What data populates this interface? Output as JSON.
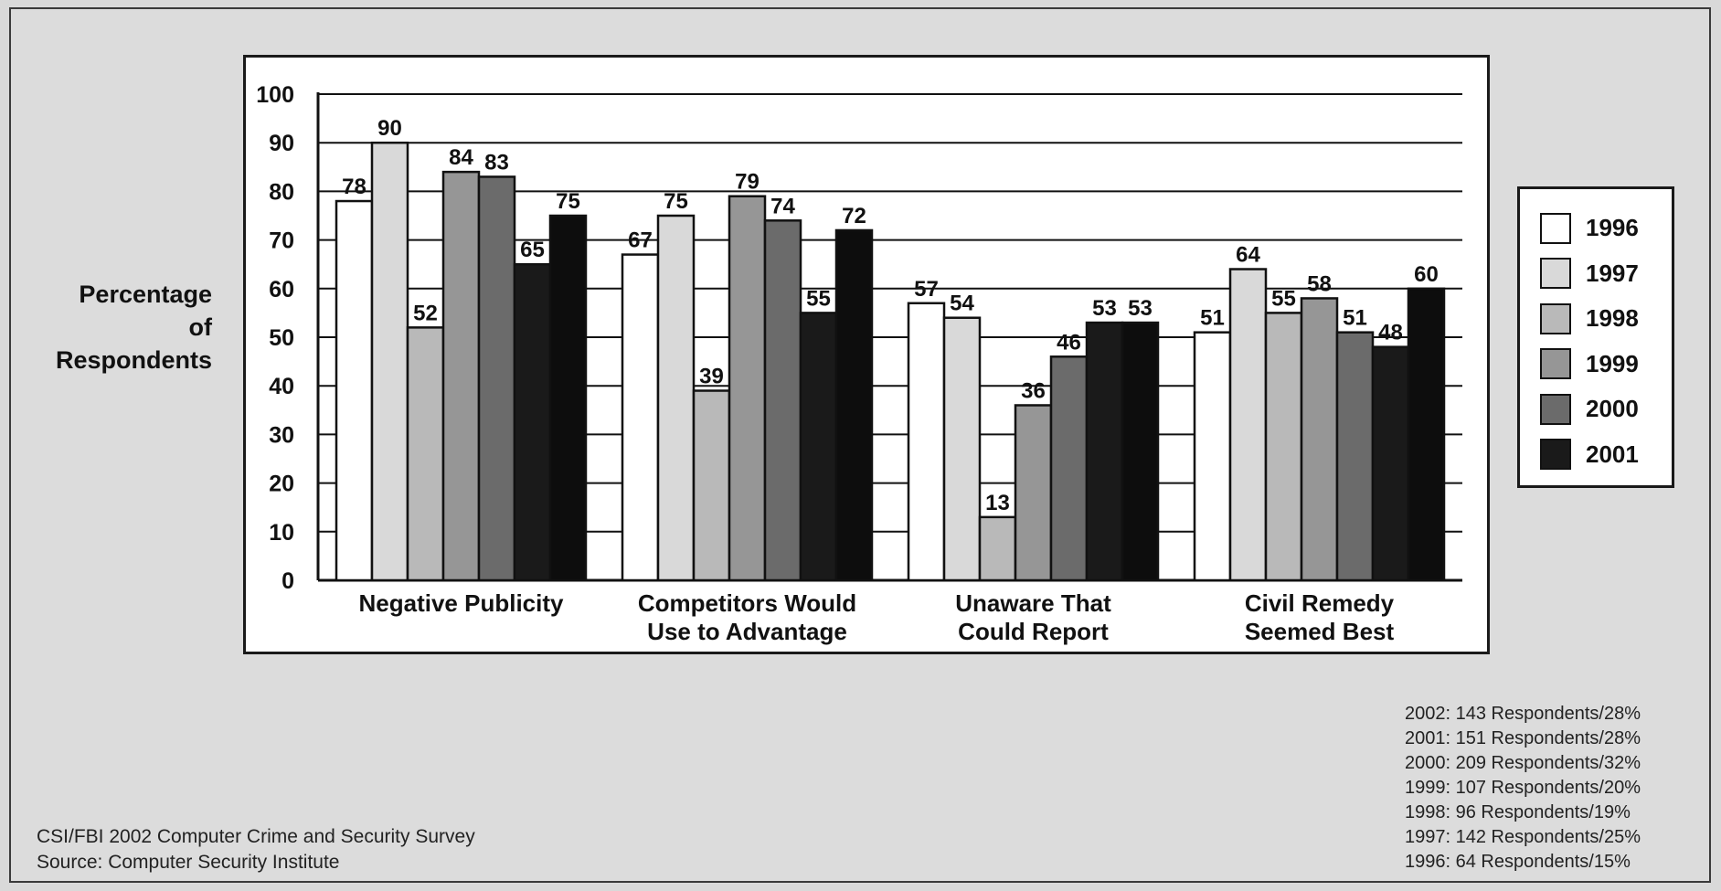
{
  "chart_data": {
    "type": "bar",
    "title": "",
    "ylabel": "Percentage of Respondents",
    "ylabel_lines": [
      "Percentage",
      "of",
      "Respondents"
    ],
    "xlabel": "",
    "ylim": [
      0,
      100
    ],
    "yticks": [
      "0",
      "10",
      "20",
      "30",
      "40",
      "50",
      "60",
      "70",
      "80",
      "90",
      "100"
    ],
    "grid": true,
    "legend_position": "right",
    "categories": [
      [
        "Negative Publicity"
      ],
      [
        "Competitors Would",
        "Use to Advantage"
      ],
      [
        "Unaware That",
        "Could Report"
      ],
      [
        "Civil Remedy",
        "Seemed Best"
      ]
    ],
    "series": [
      {
        "name": "1996",
        "color": "#ffffff",
        "values": [
          78,
          67,
          57,
          51
        ]
      },
      {
        "name": "1997",
        "color": "#d9d9d9",
        "values": [
          90,
          75,
          54,
          64
        ]
      },
      {
        "name": "1998",
        "color": "#b9b9b9",
        "values": [
          52,
          39,
          13,
          55
        ]
      },
      {
        "name": "1999",
        "color": "#969696",
        "values": [
          84,
          79,
          36,
          58
        ]
      },
      {
        "name": "2000",
        "color": "#6b6b6b",
        "values": [
          83,
          74,
          46,
          51
        ]
      },
      {
        "name": "2001",
        "color": "#1a1a1a",
        "values": [
          65,
          55,
          53,
          48
        ]
      },
      {
        "name": "",
        "color": "#0d0d0d",
        "values": [
          75,
          72,
          53,
          60
        ]
      }
    ]
  },
  "legend": [
    {
      "label": "1996",
      "color": "#ffffff"
    },
    {
      "label": "1997",
      "color": "#d9d9d9"
    },
    {
      "label": "1998",
      "color": "#b9b9b9"
    },
    {
      "label": "1999",
      "color": "#969696"
    },
    {
      "label": "2000",
      "color": "#6b6b6b"
    },
    {
      "label": "2001",
      "color": "#1a1a1a"
    }
  ],
  "sample_notes": [
    "2002:  143 Respondents/28%",
    "2001:  151 Respondents/28%",
    "2000:  209 Respondents/32%",
    "1999:  107 Respondents/20%",
    "1998:  96 Respondents/19%",
    "1997:  142 Respondents/25%",
    "1996:  64 Respondents/15%"
  ],
  "source_notes": [
    "CSI/FBI 2002 Computer Crime and Security Survey",
    "Source: Computer Security Institute"
  ]
}
